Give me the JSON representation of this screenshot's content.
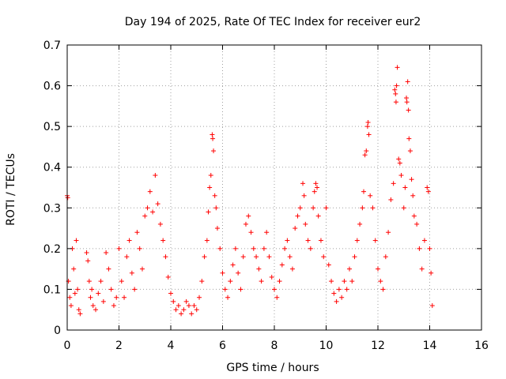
{
  "chart_data": {
    "type": "scatter",
    "title": "Day 194 of 2025, Rate Of TEC Index for receiver eur2",
    "xlabel": "GPS time / hours",
    "ylabel": "ROTI / TECUs",
    "xlim": [
      0,
      16
    ],
    "ylim": [
      0,
      0.7
    ],
    "xticks": [
      0,
      2,
      4,
      6,
      8,
      10,
      12,
      14,
      16
    ],
    "xtick_labels": [
      "0",
      "2",
      "4",
      "6",
      "8",
      "10",
      "12",
      "14",
      "16"
    ],
    "yticks": [
      0,
      0.1,
      0.2,
      0.3,
      0.4,
      0.5,
      0.6,
      0.7
    ],
    "ytick_labels": [
      "0",
      "0.1",
      "0.2",
      "0.3",
      "0.4",
      "0.5",
      "0.6",
      "0.7"
    ],
    "grid": true,
    "marker": "+",
    "color": "#ff0000",
    "series": [
      {
        "name": "ROTI",
        "points": [
          [
            0.0,
            0.33
          ],
          [
            0.02,
            0.325
          ],
          [
            0.05,
            0.12
          ],
          [
            0.1,
            0.08
          ],
          [
            0.15,
            0.06
          ],
          [
            0.2,
            0.2
          ],
          [
            0.25,
            0.15
          ],
          [
            0.3,
            0.09
          ],
          [
            0.35,
            0.22
          ],
          [
            0.4,
            0.1
          ],
          [
            0.45,
            0.05
          ],
          [
            0.5,
            0.04
          ],
          [
            0.75,
            0.19
          ],
          [
            0.8,
            0.17
          ],
          [
            0.85,
            0.12
          ],
          [
            0.9,
            0.08
          ],
          [
            0.95,
            0.1
          ],
          [
            1.0,
            0.06
          ],
          [
            1.1,
            0.05
          ],
          [
            1.2,
            0.09
          ],
          [
            1.3,
            0.12
          ],
          [
            1.4,
            0.07
          ],
          [
            1.5,
            0.19
          ],
          [
            1.6,
            0.15
          ],
          [
            1.7,
            0.1
          ],
          [
            1.8,
            0.06
          ],
          [
            1.9,
            0.08
          ],
          [
            2.0,
            0.2
          ],
          [
            2.1,
            0.12
          ],
          [
            2.2,
            0.08
          ],
          [
            2.3,
            0.18
          ],
          [
            2.4,
            0.22
          ],
          [
            2.5,
            0.14
          ],
          [
            2.6,
            0.1
          ],
          [
            2.7,
            0.24
          ],
          [
            2.8,
            0.2
          ],
          [
            2.9,
            0.15
          ],
          [
            3.0,
            0.28
          ],
          [
            3.1,
            0.3
          ],
          [
            3.2,
            0.34
          ],
          [
            3.3,
            0.29
          ],
          [
            3.4,
            0.38
          ],
          [
            3.5,
            0.31
          ],
          [
            3.6,
            0.26
          ],
          [
            3.7,
            0.22
          ],
          [
            3.8,
            0.18
          ],
          [
            3.9,
            0.13
          ],
          [
            4.0,
            0.09
          ],
          [
            4.1,
            0.07
          ],
          [
            4.2,
            0.05
          ],
          [
            4.3,
            0.06
          ],
          [
            4.4,
            0.04
          ],
          [
            4.5,
            0.05
          ],
          [
            4.6,
            0.07
          ],
          [
            4.7,
            0.06
          ],
          [
            4.8,
            0.04
          ],
          [
            4.9,
            0.06
          ],
          [
            5.0,
            0.05
          ],
          [
            5.1,
            0.08
          ],
          [
            5.2,
            0.12
          ],
          [
            5.3,
            0.18
          ],
          [
            5.4,
            0.22
          ],
          [
            5.45,
            0.29
          ],
          [
            5.5,
            0.35
          ],
          [
            5.55,
            0.38
          ],
          [
            5.6,
            0.48
          ],
          [
            5.62,
            0.47
          ],
          [
            5.65,
            0.44
          ],
          [
            5.7,
            0.33
          ],
          [
            5.75,
            0.3
          ],
          [
            5.8,
            0.25
          ],
          [
            5.9,
            0.2
          ],
          [
            6.0,
            0.14
          ],
          [
            6.1,
            0.1
          ],
          [
            6.2,
            0.08
          ],
          [
            6.3,
            0.12
          ],
          [
            6.4,
            0.16
          ],
          [
            6.5,
            0.2
          ],
          [
            6.6,
            0.14
          ],
          [
            6.7,
            0.1
          ],
          [
            6.8,
            0.18
          ],
          [
            6.9,
            0.26
          ],
          [
            7.0,
            0.28
          ],
          [
            7.1,
            0.24
          ],
          [
            7.2,
            0.2
          ],
          [
            7.3,
            0.18
          ],
          [
            7.4,
            0.15
          ],
          [
            7.5,
            0.12
          ],
          [
            7.6,
            0.2
          ],
          [
            7.7,
            0.24
          ],
          [
            7.8,
            0.18
          ],
          [
            7.9,
            0.13
          ],
          [
            8.0,
            0.1
          ],
          [
            8.1,
            0.08
          ],
          [
            8.2,
            0.12
          ],
          [
            8.3,
            0.16
          ],
          [
            8.4,
            0.2
          ],
          [
            8.5,
            0.22
          ],
          [
            8.6,
            0.18
          ],
          [
            8.7,
            0.15
          ],
          [
            8.8,
            0.25
          ],
          [
            8.9,
            0.28
          ],
          [
            9.0,
            0.3
          ],
          [
            9.1,
            0.36
          ],
          [
            9.15,
            0.33
          ],
          [
            9.2,
            0.26
          ],
          [
            9.3,
            0.22
          ],
          [
            9.4,
            0.2
          ],
          [
            9.5,
            0.3
          ],
          [
            9.55,
            0.34
          ],
          [
            9.6,
            0.36
          ],
          [
            9.65,
            0.35
          ],
          [
            9.7,
            0.28
          ],
          [
            9.8,
            0.22
          ],
          [
            9.9,
            0.18
          ],
          [
            10.0,
            0.3
          ],
          [
            10.1,
            0.16
          ],
          [
            10.2,
            0.12
          ],
          [
            10.3,
            0.09
          ],
          [
            10.4,
            0.07
          ],
          [
            10.5,
            0.1
          ],
          [
            10.6,
            0.08
          ],
          [
            10.7,
            0.12
          ],
          [
            10.8,
            0.1
          ],
          [
            10.9,
            0.15
          ],
          [
            11.0,
            0.12
          ],
          [
            11.1,
            0.18
          ],
          [
            11.2,
            0.22
          ],
          [
            11.3,
            0.26
          ],
          [
            11.4,
            0.3
          ],
          [
            11.45,
            0.34
          ],
          [
            11.5,
            0.43
          ],
          [
            11.55,
            0.44
          ],
          [
            11.6,
            0.5
          ],
          [
            11.62,
            0.51
          ],
          [
            11.65,
            0.48
          ],
          [
            11.7,
            0.33
          ],
          [
            11.8,
            0.3
          ],
          [
            11.9,
            0.22
          ],
          [
            12.0,
            0.15
          ],
          [
            12.1,
            0.12
          ],
          [
            12.2,
            0.1
          ],
          [
            12.3,
            0.18
          ],
          [
            12.4,
            0.24
          ],
          [
            12.5,
            0.32
          ],
          [
            12.6,
            0.36
          ],
          [
            12.65,
            0.59
          ],
          [
            12.68,
            0.58
          ],
          [
            12.7,
            0.56
          ],
          [
            12.72,
            0.6
          ],
          [
            12.75,
            0.645
          ],
          [
            12.8,
            0.42
          ],
          [
            12.85,
            0.41
          ],
          [
            12.9,
            0.38
          ],
          [
            13.0,
            0.3
          ],
          [
            13.05,
            0.35
          ],
          [
            13.1,
            0.57
          ],
          [
            13.12,
            0.56
          ],
          [
            13.15,
            0.61
          ],
          [
            13.18,
            0.54
          ],
          [
            13.2,
            0.47
          ],
          [
            13.25,
            0.44
          ],
          [
            13.3,
            0.37
          ],
          [
            13.35,
            0.33
          ],
          [
            13.4,
            0.28
          ],
          [
            13.5,
            0.26
          ],
          [
            13.6,
            0.2
          ],
          [
            13.7,
            0.15
          ],
          [
            13.8,
            0.22
          ],
          [
            13.9,
            0.35
          ],
          [
            13.95,
            0.34
          ],
          [
            14.0,
            0.2
          ],
          [
            14.05,
            0.14
          ],
          [
            14.1,
            0.06
          ]
        ]
      }
    ]
  }
}
